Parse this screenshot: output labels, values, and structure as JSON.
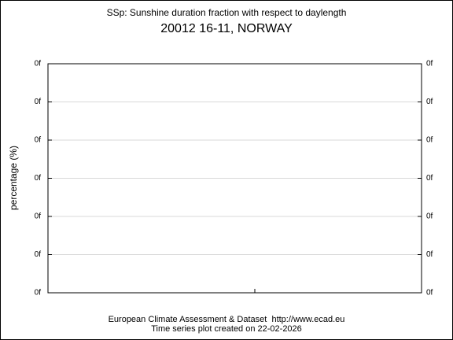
{
  "header": {
    "title": "SSp: Sunshine duration fraction with respect to daylength",
    "subtitle": "20012 16-11, NORWAY"
  },
  "axes": {
    "y_label": "percentage (%)",
    "left_tick_labels": [
      "0f",
      "0f",
      "0f",
      "0f",
      "0f",
      "0f",
      "0f"
    ],
    "right_tick_labels": [
      "0f",
      "0f",
      "0f",
      "0f",
      "0f",
      "0f",
      "0f"
    ]
  },
  "footer": {
    "line1": "European Climate Assessment & Dataset  http://www.ecad.eu",
    "line2": "Time series plot created on 22-02-2026"
  }
}
